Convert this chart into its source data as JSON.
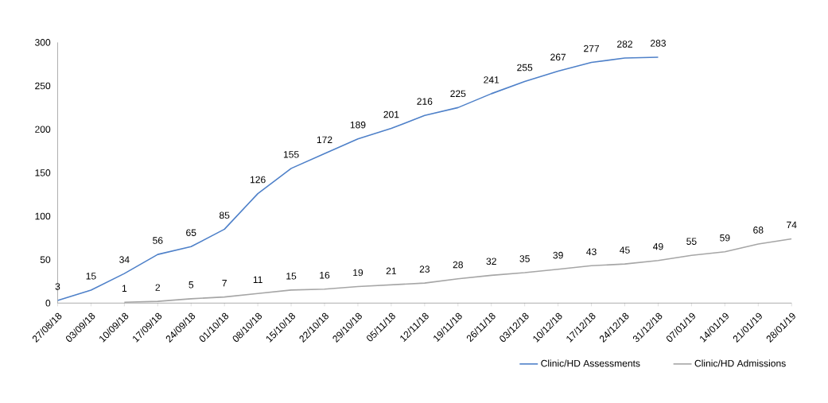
{
  "chart_data": {
    "type": "line",
    "categories": [
      "27/08/18",
      "03/09/18",
      "10/09/18",
      "17/09/18",
      "24/09/18",
      "01/10/18",
      "08/10/18",
      "15/10/18",
      "22/10/18",
      "29/10/18",
      "05/11/18",
      "12/11/18",
      "19/11/18",
      "26/11/18",
      "03/12/18",
      "10/12/18",
      "17/12/18",
      "24/12/18",
      "31/12/18",
      "07/01/19",
      "14/01/19",
      "21/01/19",
      "28/01/19"
    ],
    "series": [
      {
        "name": "Clinic/HD Assessments",
        "color": "#4f81c9",
        "values": [
          3,
          15,
          34,
          56,
          65,
          85,
          126,
          155,
          172,
          189,
          201,
          216,
          225,
          241,
          255,
          267,
          277,
          282,
          283,
          null,
          null,
          null,
          null
        ]
      },
      {
        "name": "Clinic/HD Admissions",
        "color": "#a6a6a6",
        "values": [
          null,
          null,
          1,
          2,
          5,
          7,
          11,
          15,
          16,
          19,
          21,
          23,
          28,
          32,
          35,
          39,
          43,
          45,
          49,
          55,
          59,
          68,
          74
        ]
      }
    ],
    "ylim": [
      0,
      300
    ],
    "yticks": [
      0,
      50,
      100,
      150,
      200,
      250,
      300
    ],
    "data_labels": true,
    "legend": "bottom right",
    "marker": "none"
  }
}
